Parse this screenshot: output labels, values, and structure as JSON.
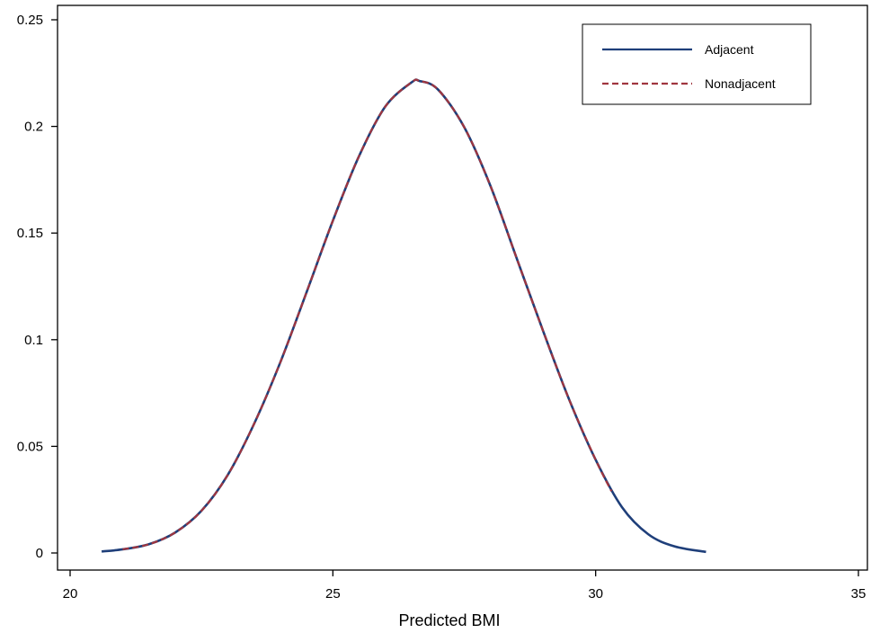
{
  "chart_data": {
    "type": "line",
    "title": "",
    "xlabel": "Predicted BMI",
    "ylabel": "",
    "xlim": [
      20,
      35
    ],
    "ylim": [
      0,
      0.25
    ],
    "x_ticks": [
      "20",
      "25",
      "30",
      "35"
    ],
    "y_ticks": [
      "0",
      "0.05",
      "0.1",
      "0.15",
      "0.2",
      "0.25"
    ],
    "grid": false,
    "legend": {
      "placement": "top-right"
    },
    "series": [
      {
        "name": "Adjacent",
        "color": "#1f3f7a",
        "style": "solid",
        "x": [
          20.6,
          21.0,
          21.5,
          22.0,
          22.5,
          23.0,
          23.5,
          24.0,
          24.5,
          25.0,
          25.5,
          26.0,
          26.5,
          26.65,
          27.0,
          27.5,
          28.0,
          28.5,
          29.0,
          29.5,
          30.0,
          30.5,
          31.0,
          31.5,
          32.1
        ],
        "y": [
          0.0007,
          0.0017,
          0.0041,
          0.0096,
          0.0198,
          0.0366,
          0.0605,
          0.0894,
          0.1223,
          0.1558,
          0.1862,
          0.2094,
          0.2207,
          0.2213,
          0.2173,
          0.1996,
          0.172,
          0.138,
          0.1041,
          0.0717,
          0.0437,
          0.0215,
          0.0088,
          0.0031,
          0.0005
        ]
      },
      {
        "name": "Nonadjacent",
        "color": "#a0353f",
        "style": "dashed",
        "x": [
          21.0,
          21.5,
          22.0,
          22.5,
          23.0,
          23.5,
          24.0,
          24.5,
          25.0,
          25.5,
          26.0,
          26.5,
          26.65,
          27.0,
          27.5,
          28.0,
          28.5,
          29.0,
          29.5,
          30.0,
          30.3
        ],
        "y": [
          0.0017,
          0.0041,
          0.0096,
          0.0198,
          0.0366,
          0.0605,
          0.0894,
          0.1223,
          0.1558,
          0.1862,
          0.2094,
          0.2207,
          0.2213,
          0.2173,
          0.1996,
          0.172,
          0.138,
          0.1041,
          0.0717,
          0.0437,
          0.029
        ]
      }
    ]
  }
}
